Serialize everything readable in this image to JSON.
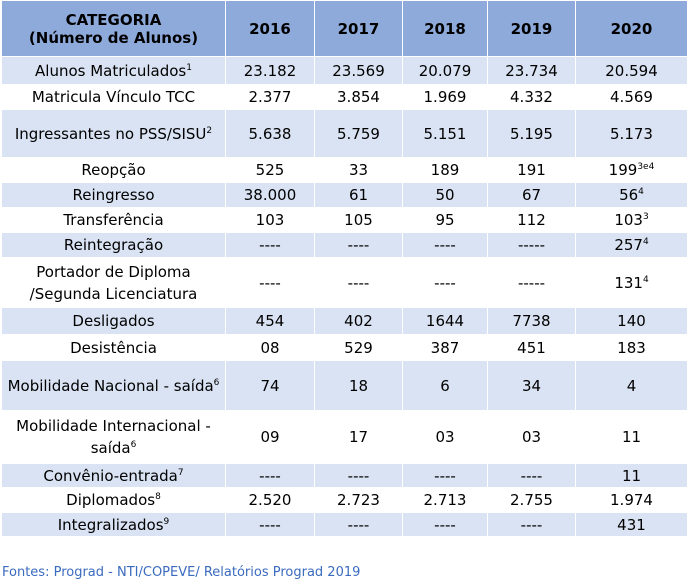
{
  "table": {
    "header": {
      "category_line1": "CATEGORIA",
      "category_line2": "(Número de Alunos)",
      "years": [
        "2016",
        "2017",
        "2018",
        "2019",
        "2020"
      ]
    },
    "rows": [
      {
        "label": "Alunos Matriculados",
        "label_sup": "1",
        "values": [
          "23.182",
          "23.569",
          "20.079",
          "23.734",
          "20.594"
        ],
        "last_sup": ""
      },
      {
        "label": "Matricula Vínculo TCC",
        "label_sup": "",
        "values": [
          "2.377",
          "3.854",
          "1.969",
          "4.332",
          "4.569"
        ],
        "last_sup": ""
      },
      {
        "label": "Ingressantes no PSS/SISU",
        "label_sup": "2",
        "values": [
          "5.638",
          "5.759",
          "5.151",
          "5.195",
          "5.173"
        ],
        "last_sup": ""
      },
      {
        "label": "Reopção",
        "label_sup": "",
        "values": [
          "525",
          "33",
          "189",
          "191",
          "199"
        ],
        "last_sup": "3e4"
      },
      {
        "label": "Reingresso",
        "label_sup": "",
        "values": [
          "38.000",
          "61",
          "50",
          "67",
          "56"
        ],
        "last_sup": "4"
      },
      {
        "label": "Transferência",
        "label_sup": "",
        "values": [
          "103",
          "105",
          "95",
          "112",
          "103"
        ],
        "last_sup": "3"
      },
      {
        "label": "Reintegração",
        "label_sup": "",
        "values": [
          "----",
          "----",
          "----",
          "-----",
          "257"
        ],
        "last_sup": "4"
      },
      {
        "label": "Portador de Diploma /Segunda Licenciatura",
        "label_sup": "",
        "values": [
          "----",
          "----",
          "----",
          "-----",
          "131"
        ],
        "last_sup": "4"
      },
      {
        "label": "Desligados",
        "label_sup": "",
        "values": [
          "454",
          "402",
          "1644",
          "7738",
          "140"
        ],
        "last_sup": ""
      },
      {
        "label": "Desistência",
        "label_sup": "",
        "values": [
          "08",
          "529",
          "387",
          "451",
          "183"
        ],
        "last_sup": ""
      },
      {
        "label": "Mobilidade Nacional - saída",
        "label_sup": "6",
        "values": [
          "74",
          "18",
          "6",
          "34",
          "4"
        ],
        "last_sup": ""
      },
      {
        "label": "Mobilidade Internacional - saída",
        "label_sup": "6",
        "values": [
          "09",
          "17",
          "03",
          "03",
          "11"
        ],
        "last_sup": ""
      },
      {
        "label": "Convênio-entrada",
        "label_sup": "7",
        "values": [
          "----",
          "----",
          "----",
          "----",
          "11"
        ],
        "last_sup": ""
      },
      {
        "label": "Diplomados",
        "label_sup": "8",
        "values": [
          "2.520",
          "2.723",
          "2.713",
          "2.755",
          "1.974"
        ],
        "last_sup": ""
      },
      {
        "label": "Integralizados",
        "label_sup": "9",
        "values": [
          "----",
          "----",
          "----",
          "----",
          "431"
        ],
        "last_sup": ""
      }
    ]
  },
  "source": "Fontes: Prograd - NTI/COPEVE/ Relatórios Prograd 2019"
}
